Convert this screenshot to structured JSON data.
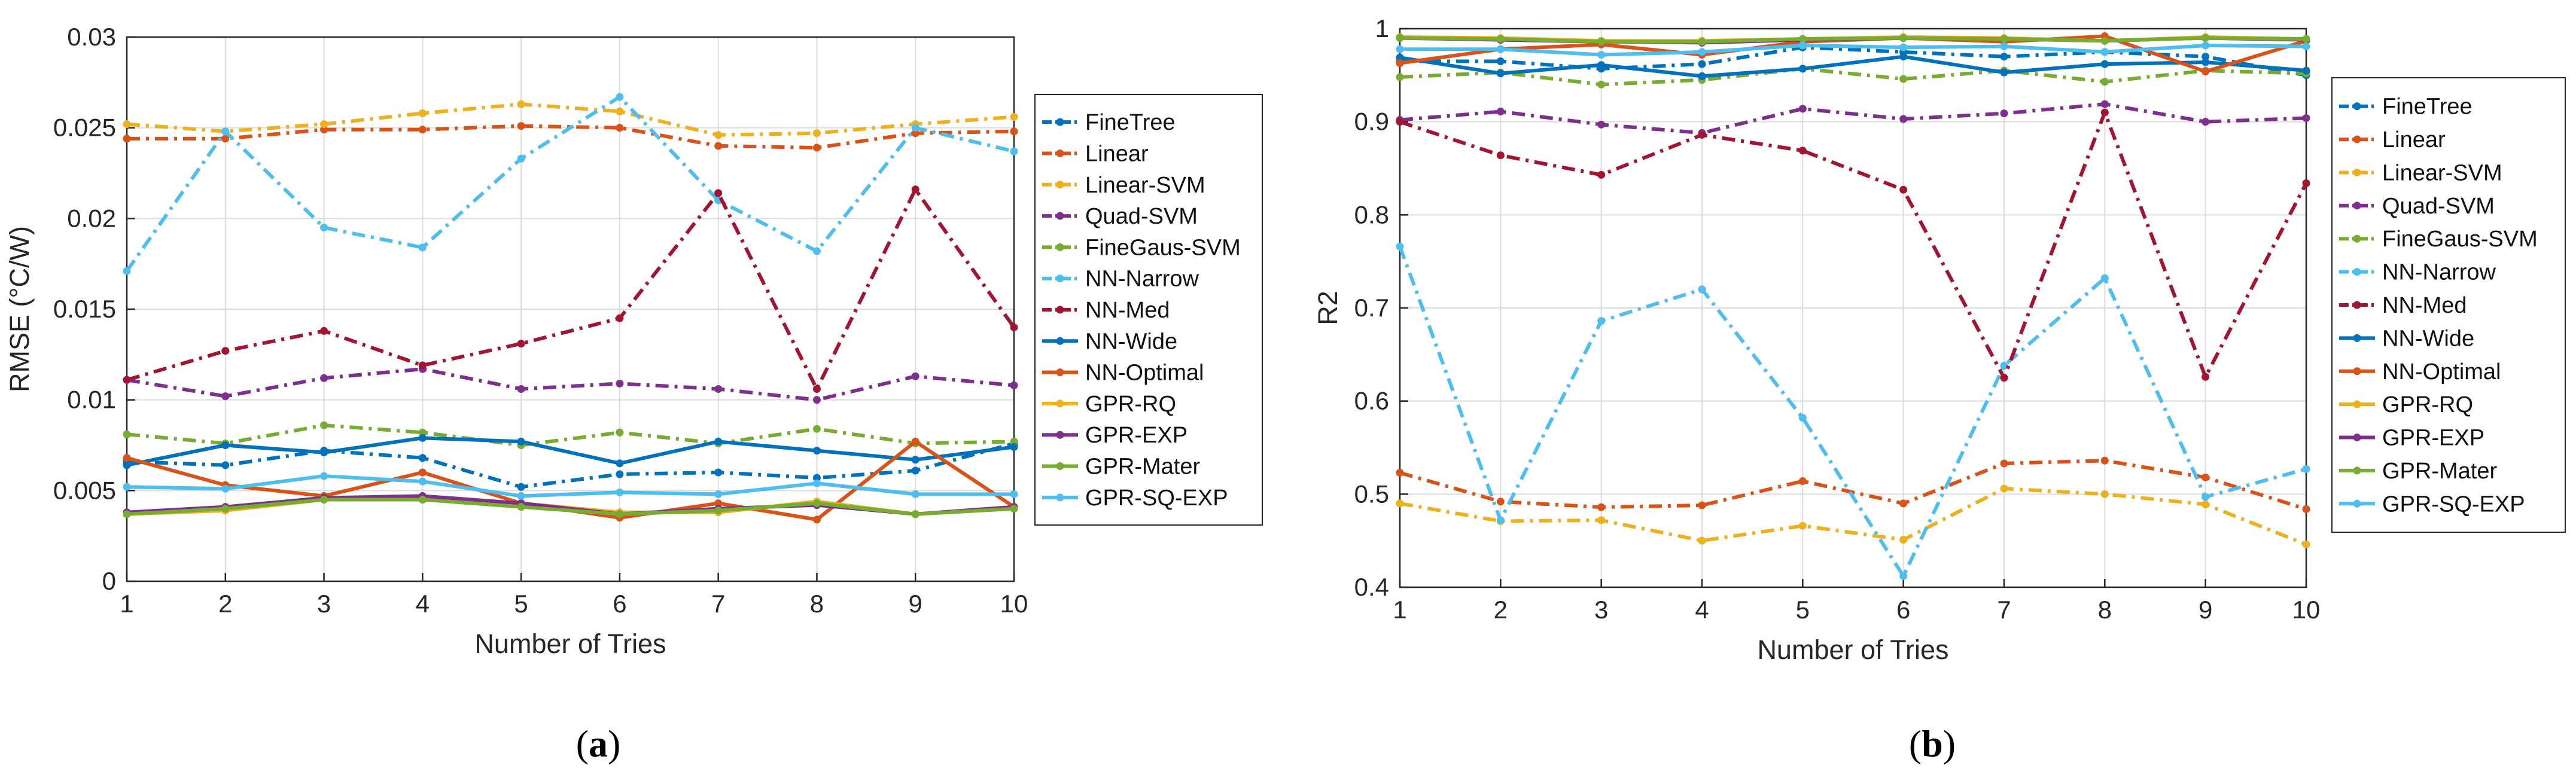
{
  "chart_data": [
    {
      "type": "line",
      "panel_label": "(a)",
      "panel_letter": "a",
      "xlabel": "Number of Tries",
      "ylabel": "RMSE (°C/W)",
      "xlim": [
        1,
        10
      ],
      "ylim": [
        0,
        0.03
      ],
      "x_ticks": [
        1,
        2,
        3,
        4,
        5,
        6,
        7,
        8,
        9,
        10
      ],
      "y_ticks": [
        "0",
        "0.005",
        "0.01",
        "0.015",
        "0.02",
        "0.025",
        "0.03"
      ],
      "y_tick_values": [
        0,
        0.005,
        0.01,
        0.015,
        0.02,
        0.025,
        0.03
      ],
      "grid": true,
      "legend_position": "outside-right",
      "x": [
        1,
        2,
        3,
        4,
        5,
        6,
        7,
        8,
        9,
        10
      ],
      "series": [
        {
          "name": "FineTree",
          "color": "#0072BD",
          "dash": "dashdot",
          "values": [
            0.0066,
            0.0064,
            0.0072,
            0.0068,
            0.0052,
            0.0059,
            0.006,
            0.0057,
            0.0061,
            0.0076
          ]
        },
        {
          "name": "Linear",
          "color": "#D95319",
          "dash": "dashdot",
          "values": [
            0.0244,
            0.0244,
            0.0249,
            0.0249,
            0.0251,
            0.025,
            0.024,
            0.0239,
            0.0247,
            0.0248
          ]
        },
        {
          "name": "Linear-SVM",
          "color": "#EDB120",
          "dash": "dashdot",
          "values": [
            0.0252,
            0.0248,
            0.0252,
            0.0258,
            0.0263,
            0.0259,
            0.0246,
            0.0247,
            0.0252,
            0.0256
          ]
        },
        {
          "name": "Quad-SVM",
          "color": "#7E2F8E",
          "dash": "dashdot",
          "values": [
            0.0111,
            0.0102,
            0.0112,
            0.0117,
            0.0106,
            0.0109,
            0.0106,
            0.01,
            0.0113,
            0.0108
          ]
        },
        {
          "name": "FineGaus-SVM",
          "color": "#77AC30",
          "dash": "dashdot",
          "values": [
            0.0081,
            0.0076,
            0.0086,
            0.0082,
            0.0075,
            0.0082,
            0.0076,
            0.0084,
            0.0076,
            0.0077
          ]
        },
        {
          "name": "NN-Narrow",
          "color": "#4DBEEE",
          "dash": "dashdot",
          "values": [
            0.0171,
            0.0248,
            0.0195,
            0.0184,
            0.0233,
            0.0267,
            0.021,
            0.0182,
            0.025,
            0.0237
          ]
        },
        {
          "name": "NN-Med",
          "color": "#A2142F",
          "dash": "dashdot",
          "values": [
            0.0111,
            0.0127,
            0.0138,
            0.0119,
            0.0131,
            0.0145,
            0.0214,
            0.0106,
            0.0216,
            0.014
          ]
        },
        {
          "name": "NN-Wide",
          "color": "#0072BD",
          "dash": "solid",
          "values": [
            0.0064,
            0.0075,
            0.0071,
            0.0079,
            0.0077,
            0.0065,
            0.0077,
            0.0072,
            0.0067,
            0.0074
          ]
        },
        {
          "name": "NN-Optimal",
          "color": "#D95319",
          "dash": "solid",
          "values": [
            0.0068,
            0.0053,
            0.0047,
            0.006,
            0.0043,
            0.0035,
            0.0043,
            0.0034,
            0.0077,
            0.0041
          ]
        },
        {
          "name": "GPR-RQ",
          "color": "#EDB120",
          "dash": "solid",
          "values": [
            0.0037,
            0.0039,
            0.0045,
            0.0045,
            0.0043,
            0.0038,
            0.0038,
            0.0044,
            0.0037,
            0.004
          ]
        },
        {
          "name": "GPR-EXP",
          "color": "#7E2F8E",
          "dash": "solid",
          "values": [
            0.0038,
            0.0041,
            0.0046,
            0.0047,
            0.0043,
            0.0037,
            0.004,
            0.0042,
            0.0037,
            0.0041
          ]
        },
        {
          "name": "GPR-Mater",
          "color": "#77AC30",
          "dash": "solid",
          "values": [
            0.0037,
            0.004,
            0.0045,
            0.0045,
            0.0041,
            0.0037,
            0.0039,
            0.0043,
            0.0037,
            0.004
          ]
        },
        {
          "name": "GPR-SQ-EXP",
          "color": "#4DBEEE",
          "dash": "solid",
          "values": [
            0.0052,
            0.0051,
            0.0058,
            0.0055,
            0.0047,
            0.0049,
            0.0048,
            0.0054,
            0.0048,
            0.0048
          ]
        }
      ]
    },
    {
      "type": "line",
      "panel_label": "(b)",
      "panel_letter": "b",
      "xlabel": "Number of Tries",
      "ylabel": "R2",
      "xlim": [
        1,
        10
      ],
      "ylim": [
        0.4,
        1
      ],
      "x_ticks": [
        1,
        2,
        3,
        4,
        5,
        6,
        7,
        8,
        9,
        10
      ],
      "y_ticks": [
        "0.4",
        "0.5",
        "0.6",
        "0.7",
        "0.8",
        "0.9",
        "1"
      ],
      "y_tick_values": [
        0.4,
        0.5,
        0.6,
        0.7,
        0.8,
        0.9,
        1.0
      ],
      "grid": true,
      "legend_position": "outside-right",
      "x": [
        1,
        2,
        3,
        4,
        5,
        6,
        7,
        8,
        9,
        10
      ],
      "series": [
        {
          "name": "FineTree",
          "color": "#0072BD",
          "dash": "dashdot",
          "values": [
            0.965,
            0.965,
            0.957,
            0.962,
            0.98,
            0.975,
            0.97,
            0.975,
            0.97,
            0.95
          ]
        },
        {
          "name": "Linear",
          "color": "#D95319",
          "dash": "dashdot",
          "values": [
            0.523,
            0.492,
            0.486,
            0.488,
            0.514,
            0.49,
            0.533,
            0.536,
            0.518,
            0.484
          ]
        },
        {
          "name": "Linear-SVM",
          "color": "#EDB120",
          "dash": "dashdot",
          "values": [
            0.49,
            0.471,
            0.472,
            0.45,
            0.466,
            0.451,
            0.506,
            0.5,
            0.489,
            0.446
          ]
        },
        {
          "name": "Quad-SVM",
          "color": "#7E2F8E",
          "dash": "dashdot",
          "values": [
            0.902,
            0.911,
            0.897,
            0.888,
            0.914,
            0.903,
            0.909,
            0.919,
            0.9,
            0.904
          ]
        },
        {
          "name": "FineGaus-SVM",
          "color": "#77AC30",
          "dash": "dashdot",
          "values": [
            0.948,
            0.953,
            0.94,
            0.945,
            0.957,
            0.946,
            0.955,
            0.943,
            0.955,
            0.952
          ]
        },
        {
          "name": "NN-Narrow",
          "color": "#4DBEEE",
          "dash": "dashdot",
          "values": [
            0.766,
            0.472,
            0.686,
            0.72,
            0.582,
            0.412,
            0.638,
            0.732,
            0.497,
            0.527
          ]
        },
        {
          "name": "NN-Med",
          "color": "#A2142F",
          "dash": "dashdot",
          "values": [
            0.9,
            0.864,
            0.843,
            0.886,
            0.869,
            0.827,
            0.625,
            0.91,
            0.626,
            0.834
          ]
        },
        {
          "name": "NN-Wide",
          "color": "#0072BD",
          "dash": "solid",
          "values": [
            0.969,
            0.952,
            0.961,
            0.949,
            0.957,
            0.97,
            0.953,
            0.962,
            0.964,
            0.955
          ]
        },
        {
          "name": "NN-Optimal",
          "color": "#D95319",
          "dash": "solid",
          "values": [
            0.963,
            0.978,
            0.983,
            0.972,
            0.986,
            0.99,
            0.986,
            0.992,
            0.954,
            0.987
          ]
        },
        {
          "name": "GPR-RQ",
          "color": "#EDB120",
          "dash": "solid",
          "values": [
            0.991,
            0.99,
            0.987,
            0.987,
            0.989,
            0.991,
            0.99,
            0.987,
            0.991,
            0.989
          ]
        },
        {
          "name": "GPR-EXP",
          "color": "#7E2F8E",
          "dash": "solid",
          "values": [
            0.99,
            0.988,
            0.986,
            0.985,
            0.988,
            0.99,
            0.989,
            0.987,
            0.99,
            0.988
          ]
        },
        {
          "name": "GPR-Mater",
          "color": "#77AC30",
          "dash": "solid",
          "values": [
            0.99,
            0.989,
            0.986,
            0.986,
            0.989,
            0.99,
            0.989,
            0.987,
            0.99,
            0.989
          ]
        },
        {
          "name": "GPR-SQ-EXP",
          "color": "#4DBEEE",
          "dash": "solid",
          "values": [
            0.978,
            0.978,
            0.972,
            0.975,
            0.982,
            0.98,
            0.981,
            0.975,
            0.982,
            0.981
          ]
        }
      ]
    }
  ]
}
